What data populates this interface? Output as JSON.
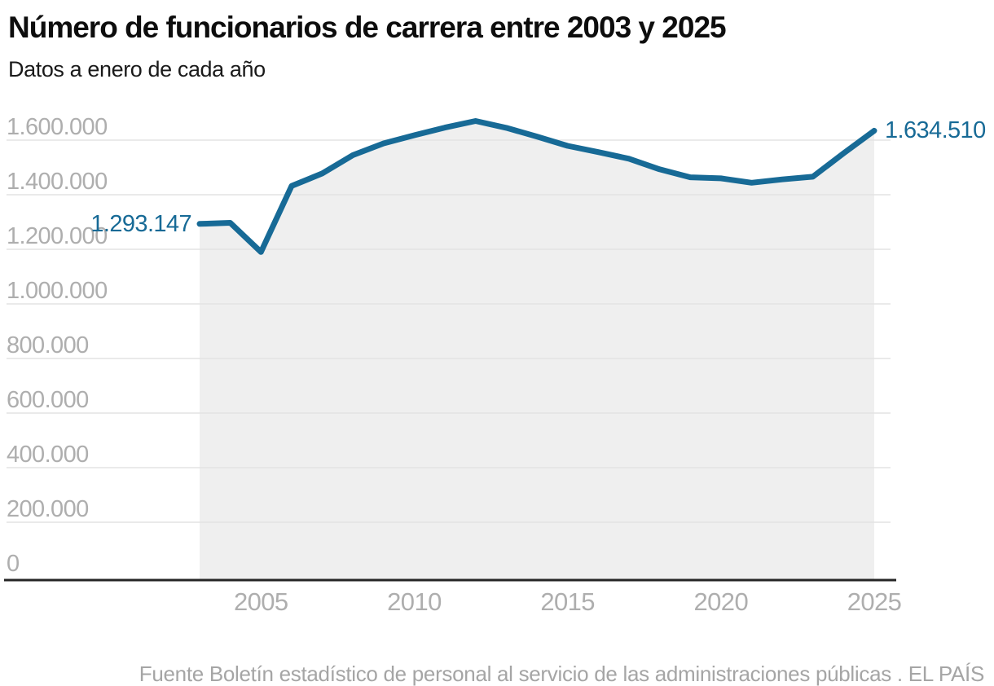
{
  "header": {
    "title": "Número de funcionarios de carrera entre 2003 y 2025",
    "subtitle": "Datos a enero de cada año"
  },
  "chart_data": {
    "type": "line",
    "title": "Número de funcionarios de carrera entre 2003 y 2025",
    "subtitle": "Datos a enero de cada año",
    "x": [
      2003,
      2004,
      2005,
      2006,
      2007,
      2008,
      2009,
      2010,
      2011,
      2012,
      2013,
      2014,
      2015,
      2016,
      2017,
      2018,
      2019,
      2020,
      2021,
      2022,
      2023,
      2024,
      2025
    ],
    "values": [
      1293147,
      1297000,
      1190000,
      1432000,
      1478000,
      1545000,
      1588000,
      1618000,
      1646000,
      1670000,
      1645000,
      1613000,
      1579000,
      1556000,
      1532000,
      1493000,
      1464000,
      1460000,
      1444000,
      1456000,
      1466000,
      1552000,
      1634510
    ],
    "point_labels": {
      "first": "1.293.147",
      "last": "1.634.510"
    },
    "y_ticks": [
      {
        "value": 1600000,
        "label": "1.600.000"
      },
      {
        "value": 1400000,
        "label": "1.400.000"
      },
      {
        "value": 1200000,
        "label": "1.200.000"
      },
      {
        "value": 1000000,
        "label": "1.000.000"
      },
      {
        "value": 800000,
        "label": "800.000"
      },
      {
        "value": 600000,
        "label": "600.000"
      },
      {
        "value": 400000,
        "label": "400.000"
      },
      {
        "value": 200000,
        "label": "200.000"
      },
      {
        "value": 0,
        "label": "0"
      }
    ],
    "x_ticks": [
      {
        "value": 2005,
        "label": "2005"
      },
      {
        "value": 2010,
        "label": "2010"
      },
      {
        "value": 2015,
        "label": "2015"
      },
      {
        "value": 2020,
        "label": "2020"
      },
      {
        "value": 2025,
        "label": "2025"
      }
    ],
    "xlim": [
      2003,
      2025
    ],
    "ylim": [
      0,
      1600000
    ],
    "grid": "horizontal",
    "legend": "none",
    "colors": {
      "line": "#176a96",
      "point_label_text": "#176a96",
      "area": "#efefef",
      "grid": "#e3e3e3",
      "axis": "#262626",
      "tick_text": "#aeaeae"
    }
  },
  "footer": {
    "source": "Fuente Boletín estadístico de personal al servicio de las administraciones públicas . EL PAÍS"
  }
}
